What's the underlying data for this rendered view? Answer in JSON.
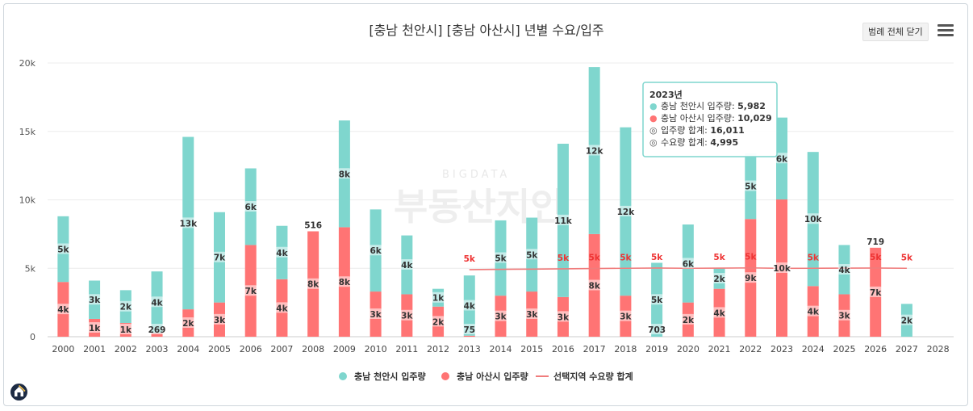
{
  "chart_data": {
    "type": "bar",
    "title": "[충남 천안시] [충남 아산시] 년별 수요/입주",
    "categories": [
      "2000",
      "2001",
      "2002",
      "2003",
      "2004",
      "2005",
      "2006",
      "2007",
      "2008",
      "2009",
      "2010",
      "2011",
      "2012",
      "2013",
      "2014",
      "2015",
      "2016",
      "2017",
      "2018",
      "2019",
      "2020",
      "2021",
      "2022",
      "2023",
      "2024",
      "2025",
      "2026",
      "2027",
      "2028"
    ],
    "ylim": [
      0,
      20000
    ],
    "yticks": [
      0,
      5000,
      10000,
      15000,
      20000
    ],
    "ytick_labels": [
      "0",
      "5k",
      "10k",
      "15k",
      "20k"
    ],
    "series": [
      {
        "name": "충남 아산시 입주량",
        "color": "#ff7474",
        "values": [
          4000,
          1300,
          1000,
          269,
          2000,
          2500,
          6700,
          4200,
          7700,
          8000,
          3300,
          3100,
          2200,
          75,
          3000,
          3300,
          2900,
          7500,
          3000,
          0,
          2500,
          3500,
          8600,
          10029,
          3700,
          3100,
          6500,
          0,
          0
        ],
        "labels": [
          "4k",
          "1k",
          "1k",
          "269",
          "2k",
          "3k",
          "7k",
          "4k",
          "8k",
          "8k",
          "3k",
          "3k",
          "2k",
          "75",
          "3k",
          "3k",
          "3k",
          "8k",
          "3k",
          "",
          "2k",
          "4k",
          "9k",
          "10k",
          "4k",
          "3k",
          "7k",
          "",
          ""
        ]
      },
      {
        "name": "충남 천안시 입주량",
        "color": "#7fd6ce",
        "values": [
          4800,
          2800,
          2400,
          4500,
          12600,
          6600,
          5600,
          3900,
          0,
          7800,
          6000,
          4300,
          1300,
          4400,
          5500,
          5400,
          11200,
          12200,
          12300,
          5400,
          5700,
          1500,
          4800,
          5982,
          9800,
          3600,
          0,
          2400,
          0
        ],
        "labels": [
          "5k",
          "3k",
          "2k",
          "4k",
          "13k",
          "7k",
          "6k",
          "4k",
          "",
          "8k",
          "6k",
          "4k",
          "1k",
          "4k",
          "5k",
          "5k",
          "11k",
          "12k",
          "12k",
          "5k",
          "6k",
          "2k",
          "5k",
          "6k",
          "10k",
          "4k",
          "",
          "2k",
          ""
        ]
      }
    ],
    "top_labels": [
      "",
      "",
      "",
      "",
      "",
      "",
      "",
      "",
      "516",
      "",
      "",
      "",
      "",
      "",
      "",
      "",
      "",
      "",
      "",
      "",
      "",
      "",
      "",
      "",
      "",
      "",
      "719",
      "",
      ""
    ],
    "top_label_values": [
      0,
      0,
      0,
      0,
      0,
      0,
      0,
      0,
      516,
      0,
      0,
      0,
      0,
      0,
      0,
      0,
      0,
      0,
      0,
      0,
      0,
      0,
      0,
      0,
      0,
      0,
      719,
      0,
      0
    ],
    "outside_labels": [
      "",
      "",
      "",
      "",
      "",
      "",
      "",
      "",
      "",
      "",
      "",
      "",
      "",
      "",
      "",
      "",
      "",
      "",
      "",
      "703",
      "",
      "",
      "",
      "",
      "",
      "",
      "",
      "",
      ""
    ],
    "demand_line": {
      "name": "선택지역 수요량 합계",
      "color": "#f07c7c",
      "values": [
        null,
        null,
        null,
        null,
        null,
        null,
        null,
        null,
        null,
        null,
        null,
        null,
        null,
        4900,
        4920,
        4940,
        4960,
        4980,
        5000,
        5020,
        5000,
        5010,
        5030,
        4995,
        5000,
        5010,
        5020,
        5000,
        null
      ],
      "labels": [
        "",
        "",
        "",
        "",
        "",
        "",
        "",
        "",
        "",
        "",
        "",
        "",
        "",
        "5k",
        "",
        "",
        "5k",
        "5k",
        "5k",
        "5k",
        "",
        "5k",
        "5k",
        "",
        "5k",
        "",
        "5k",
        "5k",
        ""
      ]
    }
  },
  "tooltip": {
    "title": "2023년",
    "rows": [
      {
        "marker": "●",
        "color": "#7fd6ce",
        "label": "충남 천안시 입주량: ",
        "value": "5,982"
      },
      {
        "marker": "●",
        "color": "#ff7474",
        "label": "충남 아산시 입주량: ",
        "value": "10,029"
      },
      {
        "marker": "◎",
        "color": "#555555",
        "label": "입주량 합계: ",
        "value": "16,011"
      },
      {
        "marker": "◎",
        "color": "#555555",
        "label": "수요량 합계: ",
        "value": "4,995"
      }
    ]
  },
  "legend": [
    {
      "name": "충남 천안시 입주량",
      "color": "#7fd6ce",
      "shape": "circle"
    },
    {
      "name": "충남 아산시 입주량",
      "color": "#ff7474",
      "shape": "circle"
    },
    {
      "name": "선택지역 수요량 합계",
      "color": "#f07c7c",
      "shape": "line"
    }
  ],
  "controls": {
    "legend_toggle": "범례 전체 닫기",
    "menu_icon": "hamburger-menu-icon",
    "home_icon": "home-icon"
  },
  "watermark": {
    "sub": "BIGDATA",
    "main": "부동산지인"
  }
}
